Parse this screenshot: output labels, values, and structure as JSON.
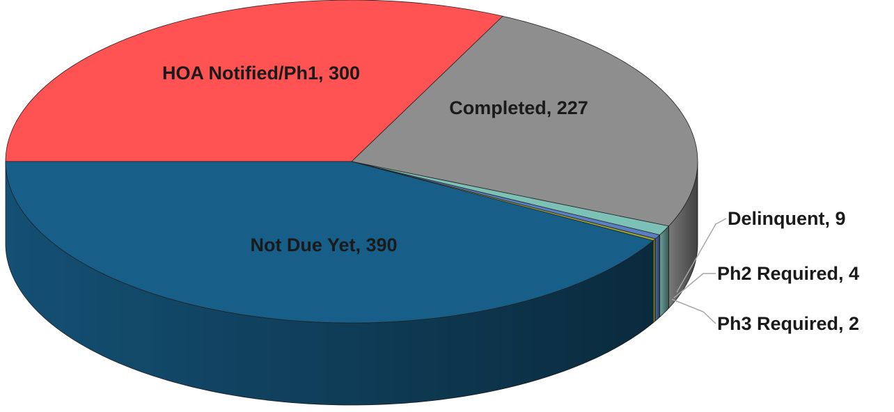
{
  "chart_data": {
    "type": "pie",
    "3d": true,
    "categories": [
      "Not Due Yet",
      "Ph3 Required",
      "Ph2 Required",
      "Delinquent",
      "Completed",
      "HOA Notified/Ph1"
    ],
    "values": [
      390,
      2,
      4,
      9,
      227,
      300
    ],
    "value_labels": [
      "Not Due Yet, 390",
      "Ph3 Required, 2",
      "Ph2 Required, 4",
      "Delinquent, 9",
      "Completed, 227",
      "HOA Notified/Ph1, 300"
    ],
    "colors": [
      "#175e88",
      "#9aa53a",
      "#5a7ec2",
      "#7cc0b6",
      "#8e8e8e",
      "#ff5252"
    ]
  }
}
